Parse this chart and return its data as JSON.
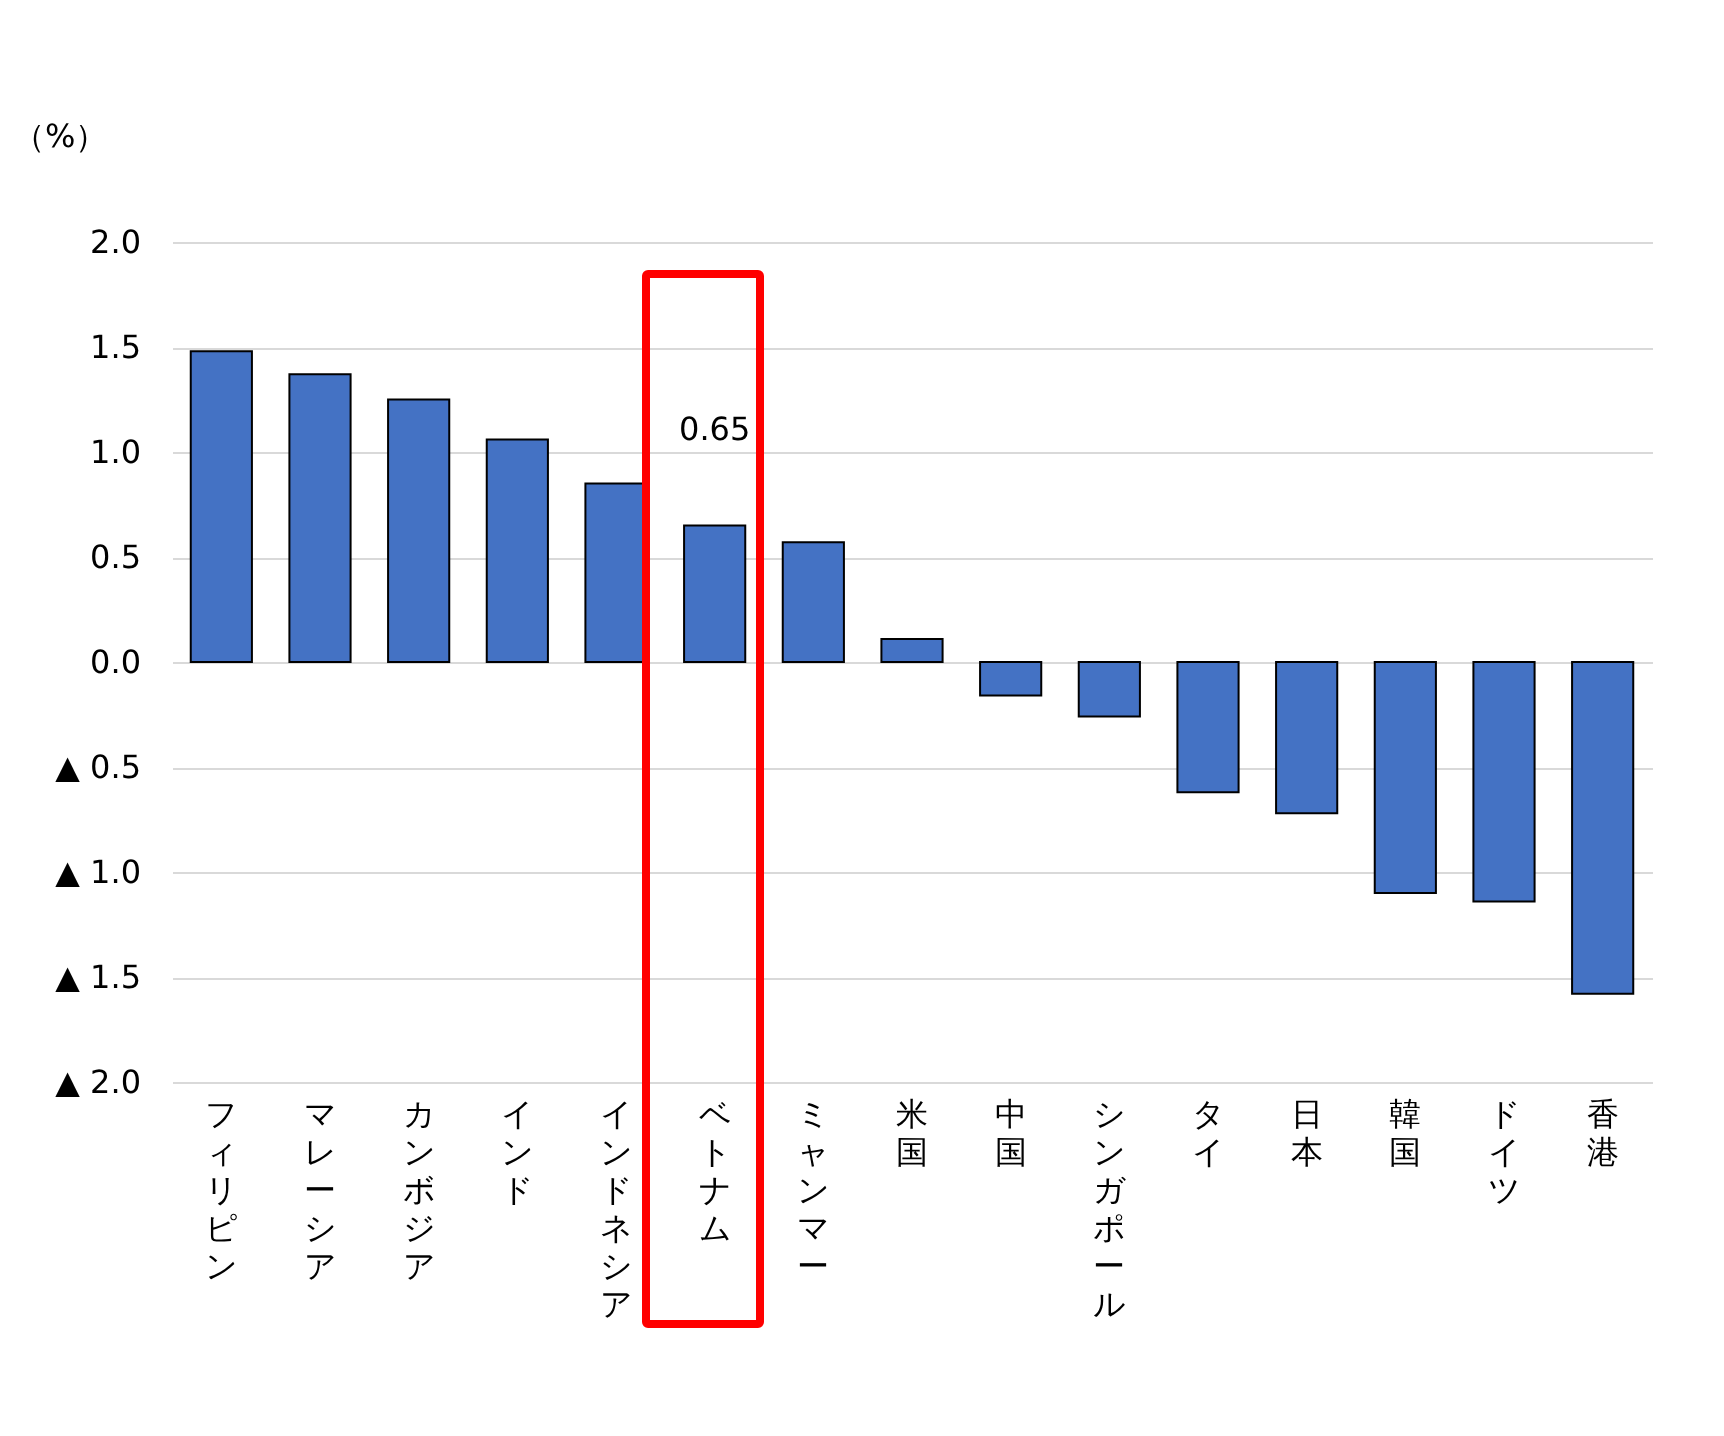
{
  "chart_data": {
    "type": "bar",
    "ylabel": "（%）",
    "categories": [
      "フィリピン",
      "マレーシア",
      "カンボジア",
      "インド",
      "インドネシア",
      "ベトナム",
      "ミャンマー",
      "米国",
      "中国",
      "シンガポール",
      "タイ",
      "日本",
      "韓国",
      "ドイツ",
      "香港"
    ],
    "values": [
      1.48,
      1.37,
      1.25,
      1.06,
      0.85,
      0.65,
      0.57,
      0.11,
      -0.16,
      -0.26,
      -0.62,
      -0.72,
      -1.1,
      -1.14,
      -1.58
    ],
    "color": "#4472c4",
    "ylim": [
      -2,
      2
    ],
    "yticks": [
      {
        "value": -2,
        "label": "▲ 2.0"
      },
      {
        "value": -1.5,
        "label": "▲ 1.5"
      },
      {
        "value": -1,
        "label": "▲ 1.0"
      },
      {
        "value": -0.5,
        "label": "▲ 0.5"
      },
      {
        "value": 0,
        "label": "0.0"
      },
      {
        "value": 0.5,
        "label": "0.5"
      },
      {
        "value": 1,
        "label": "1.0"
      },
      {
        "value": 1.5,
        "label": "1.5"
      },
      {
        "value": 2,
        "label": "2.0"
      }
    ],
    "grid": "y",
    "annotations": [
      {
        "text": "0.65",
        "x": "ベトナム",
        "y": 0.65
      }
    ]
  }
}
